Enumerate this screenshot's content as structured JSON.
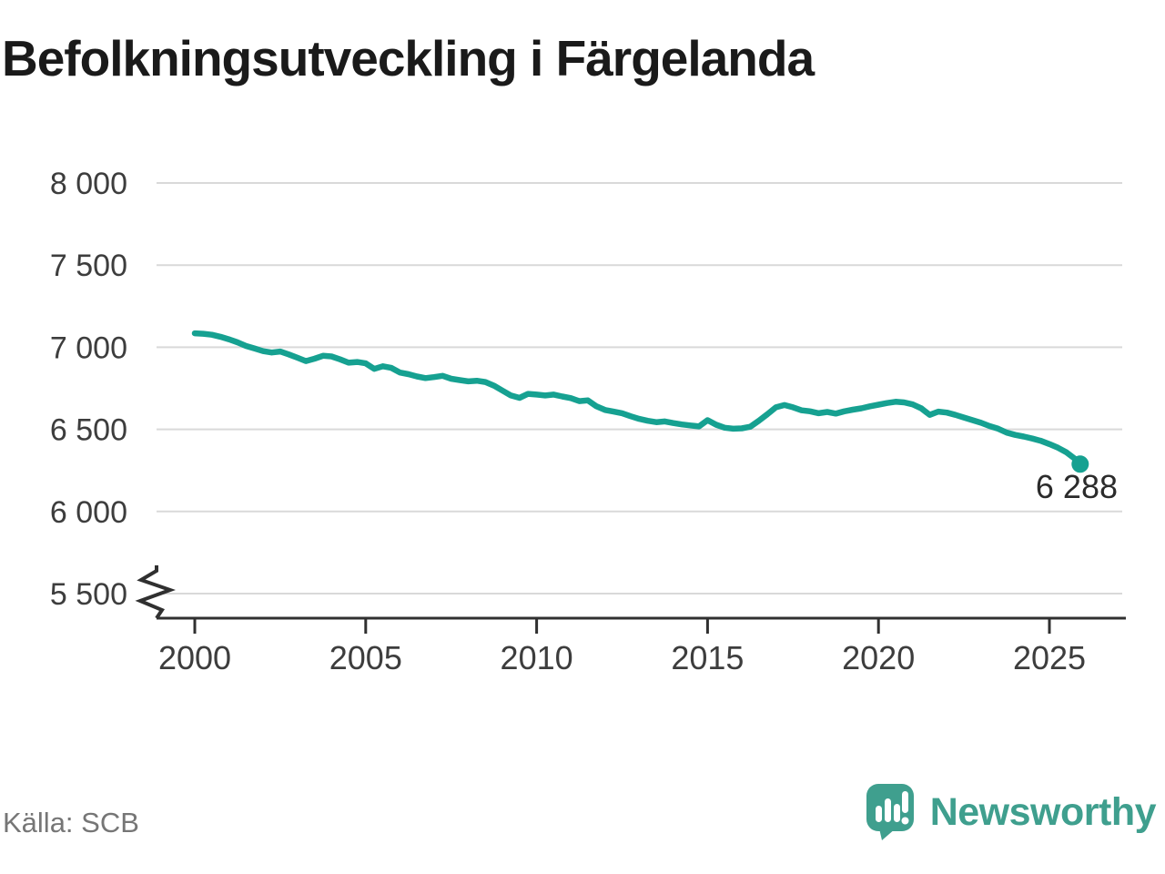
{
  "title": "Befolkningsutveckling i Färgelanda",
  "source": "Källa: SCB",
  "branding": {
    "name": "Newsworthy",
    "logo_icon": "speech-bubble-bar-chart-icon",
    "color": "#3F9F8E"
  },
  "chart_data": {
    "type": "line",
    "title": "Befolkningsutveckling i Färgelanda",
    "xlabel": "",
    "ylabel": "",
    "line_color": "#16A191",
    "grid": "horizontal",
    "axis_break_below": 5500,
    "ylim": [
      5500,
      8000
    ],
    "y_ticks": [
      {
        "value": 8000,
        "label": "8 000"
      },
      {
        "value": 7500,
        "label": "7 500"
      },
      {
        "value": 7000,
        "label": "7 000"
      },
      {
        "value": 6500,
        "label": "6 500"
      },
      {
        "value": 6000,
        "label": "6 000"
      },
      {
        "value": 5500,
        "label": "5 500"
      }
    ],
    "x_ticks": [
      {
        "value": 2000,
        "label": "2000"
      },
      {
        "value": 2005,
        "label": "2005"
      },
      {
        "value": 2010,
        "label": "2010"
      },
      {
        "value": 2015,
        "label": "2015"
      },
      {
        "value": 2020,
        "label": "2020"
      },
      {
        "value": 2025,
        "label": "2025"
      }
    ],
    "last_point": {
      "x": 2025.9,
      "value": 6288,
      "label": "6 288"
    },
    "points": [
      [
        2000.0,
        7085
      ],
      [
        2000.25,
        7082
      ],
      [
        2000.5,
        7076
      ],
      [
        2000.75,
        7064
      ],
      [
        2001.0,
        7048
      ],
      [
        2001.25,
        7030
      ],
      [
        2001.5,
        7008
      ],
      [
        2001.75,
        6992
      ],
      [
        2002.0,
        6976
      ],
      [
        2002.25,
        6968
      ],
      [
        2002.5,
        6974
      ],
      [
        2002.75,
        6956
      ],
      [
        2003.0,
        6936
      ],
      [
        2003.25,
        6916
      ],
      [
        2003.5,
        6930
      ],
      [
        2003.75,
        6948
      ],
      [
        2004.0,
        6944
      ],
      [
        2004.25,
        6926
      ],
      [
        2004.5,
        6906
      ],
      [
        2004.75,
        6910
      ],
      [
        2005.0,
        6902
      ],
      [
        2005.25,
        6868
      ],
      [
        2005.5,
        6884
      ],
      [
        2005.75,
        6874
      ],
      [
        2006.0,
        6846
      ],
      [
        2006.25,
        6836
      ],
      [
        2006.5,
        6822
      ],
      [
        2006.75,
        6812
      ],
      [
        2007.0,
        6818
      ],
      [
        2007.25,
        6826
      ],
      [
        2007.5,
        6808
      ],
      [
        2007.75,
        6800
      ],
      [
        2008.0,
        6792
      ],
      [
        2008.25,
        6796
      ],
      [
        2008.5,
        6788
      ],
      [
        2008.75,
        6766
      ],
      [
        2009.0,
        6736
      ],
      [
        2009.25,
        6706
      ],
      [
        2009.5,
        6692
      ],
      [
        2009.75,
        6716
      ],
      [
        2010.0,
        6712
      ],
      [
        2010.25,
        6706
      ],
      [
        2010.5,
        6712
      ],
      [
        2010.75,
        6700
      ],
      [
        2011.0,
        6690
      ],
      [
        2011.25,
        6672
      ],
      [
        2011.5,
        6676
      ],
      [
        2011.75,
        6640
      ],
      [
        2012.0,
        6618
      ],
      [
        2012.25,
        6608
      ],
      [
        2012.5,
        6598
      ],
      [
        2012.75,
        6580
      ],
      [
        2013.0,
        6564
      ],
      [
        2013.25,
        6552
      ],
      [
        2013.5,
        6544
      ],
      [
        2013.75,
        6548
      ],
      [
        2014.0,
        6538
      ],
      [
        2014.25,
        6530
      ],
      [
        2014.5,
        6524
      ],
      [
        2014.75,
        6518
      ],
      [
        2015.0,
        6556
      ],
      [
        2015.25,
        6528
      ],
      [
        2015.5,
        6510
      ],
      [
        2015.75,
        6504
      ],
      [
        2016.0,
        6506
      ],
      [
        2016.25,
        6516
      ],
      [
        2016.5,
        6552
      ],
      [
        2016.75,
        6592
      ],
      [
        2017.0,
        6634
      ],
      [
        2017.25,
        6648
      ],
      [
        2017.5,
        6634
      ],
      [
        2017.75,
        6616
      ],
      [
        2018.0,
        6610
      ],
      [
        2018.25,
        6598
      ],
      [
        2018.5,
        6606
      ],
      [
        2018.75,
        6596
      ],
      [
        2019.0,
        6610
      ],
      [
        2019.25,
        6620
      ],
      [
        2019.5,
        6628
      ],
      [
        2019.75,
        6640
      ],
      [
        2020.0,
        6650
      ],
      [
        2020.25,
        6660
      ],
      [
        2020.5,
        6668
      ],
      [
        2020.75,
        6664
      ],
      [
        2021.0,
        6652
      ],
      [
        2021.25,
        6628
      ],
      [
        2021.5,
        6588
      ],
      [
        2021.75,
        6608
      ],
      [
        2022.0,
        6602
      ],
      [
        2022.25,
        6588
      ],
      [
        2022.5,
        6572
      ],
      [
        2022.75,
        6556
      ],
      [
        2023.0,
        6540
      ],
      [
        2023.25,
        6520
      ],
      [
        2023.5,
        6504
      ],
      [
        2023.75,
        6480
      ],
      [
        2024.0,
        6466
      ],
      [
        2024.25,
        6456
      ],
      [
        2024.5,
        6444
      ],
      [
        2024.75,
        6430
      ],
      [
        2025.0,
        6410
      ],
      [
        2025.25,
        6388
      ],
      [
        2025.5,
        6360
      ],
      [
        2025.75,
        6320
      ],
      [
        2025.9,
        6288
      ]
    ]
  }
}
